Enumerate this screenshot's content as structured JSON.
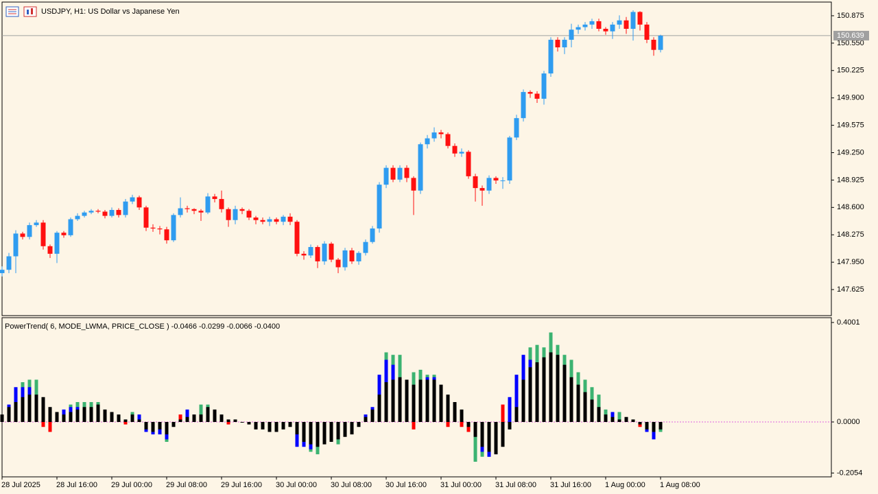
{
  "chart_data": [
    {
      "type": "candlestick",
      "title": "USDJPY, H1:  US Dollar vs Japanese Yen",
      "categories": [
        "28 Jul 2025",
        null,
        null,
        null,
        null,
        null,
        null,
        null,
        "28 Jul 16:00",
        null,
        null,
        null,
        null,
        null,
        null,
        null,
        "29 Jul 00:00",
        null,
        null,
        null,
        null,
        null,
        null,
        null,
        "29 Jul 08:00",
        null,
        null,
        null,
        null,
        null,
        null,
        null,
        "29 Jul 16:00",
        null,
        null,
        null,
        null,
        null,
        null,
        null,
        "30 Jul 00:00",
        null,
        null,
        null,
        null,
        null,
        null,
        null,
        "30 Jul 08:00",
        null,
        null,
        null,
        null,
        null,
        null,
        null,
        "30 Jul 16:00",
        null,
        null,
        null,
        null,
        null,
        null,
        null,
        "31 Jul 00:00",
        null,
        null,
        null,
        null,
        null,
        null,
        null,
        "31 Jul 08:00",
        null,
        null,
        null,
        null,
        null,
        null,
        null,
        "31 Jul 16:00",
        null,
        null,
        null,
        null,
        null,
        null,
        null,
        "1 Aug 00:00",
        null,
        null,
        null,
        null,
        null,
        null,
        null,
        "1 Aug 08:00"
      ],
      "open": [
        147.82,
        147.86,
        148.02,
        148.29,
        148.25,
        148.39,
        148.42,
        148.14,
        148.05,
        148.3,
        148.27,
        148.46,
        148.5,
        148.54,
        148.56,
        148.55,
        148.5,
        148.57,
        148.51,
        148.67,
        148.72,
        148.6,
        148.36,
        148.35,
        148.34,
        148.21,
        148.51,
        148.59,
        148.58,
        148.56,
        148.54,
        148.73,
        148.7,
        148.58,
        148.45,
        148.58,
        148.56,
        148.48,
        148.45,
        148.43,
        148.46,
        148.43,
        148.49,
        148.43,
        148.05,
        148.03,
        148.13,
        147.96,
        148.17,
        147.98,
        147.89,
        148.09,
        147.96,
        148.06,
        148.19,
        148.35,
        148.87,
        149.07,
        148.93,
        149.07,
        148.95,
        148.8,
        149.35,
        149.42,
        149.49,
        149.47,
        149.33,
        149.24,
        149.26,
        148.97,
        148.83,
        148.8,
        148.95,
        148.92,
        148.92,
        149.43,
        149.66,
        149.97,
        149.95,
        149.89,
        150.19,
        150.59,
        150.5,
        150.59,
        150.71,
        150.74,
        150.77,
        150.81,
        150.72,
        150.69,
        150.77,
        150.82,
        150.72,
        150.92,
        150.77,
        150.59,
        150.47
      ],
      "high": [
        147.9,
        148.06,
        148.33,
        148.31,
        148.42,
        148.45,
        148.45,
        148.16,
        148.32,
        148.32,
        148.48,
        148.53,
        148.56,
        148.58,
        148.58,
        148.57,
        148.6,
        148.59,
        148.7,
        148.75,
        148.74,
        148.62,
        148.4,
        148.38,
        148.37,
        148.53,
        148.72,
        148.62,
        148.59,
        148.58,
        148.77,
        148.76,
        148.8,
        148.6,
        148.62,
        148.6,
        148.58,
        148.5,
        148.48,
        148.49,
        148.48,
        148.51,
        148.53,
        148.45,
        148.08,
        148.16,
        148.15,
        148.2,
        148.19,
        148.0,
        148.12,
        148.12,
        148.08,
        148.22,
        148.38,
        148.9,
        149.1,
        149.1,
        149.1,
        149.1,
        148.97,
        149.37,
        149.46,
        149.55,
        149.52,
        149.49,
        149.36,
        149.3,
        149.28,
        149.0,
        148.86,
        148.98,
        148.97,
        148.96,
        149.45,
        149.7,
        150.0,
        149.99,
        149.98,
        150.22,
        150.62,
        150.62,
        150.62,
        150.78,
        150.77,
        150.8,
        150.84,
        150.84,
        150.74,
        150.8,
        150.88,
        150.86,
        150.94,
        150.93,
        150.8,
        150.62,
        150.65
      ],
      "low": [
        147.78,
        147.82,
        147.82,
        148.22,
        148.22,
        148.37,
        148.1,
        148.0,
        147.94,
        148.24,
        148.25,
        148.44,
        148.48,
        148.52,
        148.53,
        148.47,
        148.48,
        148.48,
        148.48,
        148.64,
        148.57,
        148.32,
        148.31,
        148.28,
        148.17,
        148.19,
        148.48,
        148.54,
        148.52,
        148.44,
        148.52,
        148.66,
        148.54,
        148.37,
        148.4,
        148.52,
        148.45,
        148.4,
        148.4,
        148.38,
        148.4,
        148.39,
        148.39,
        148.02,
        147.98,
        148.0,
        147.88,
        147.92,
        147.95,
        147.82,
        147.85,
        147.93,
        147.92,
        148.03,
        148.17,
        148.3,
        148.83,
        148.9,
        148.9,
        148.9,
        148.51,
        148.76,
        149.3,
        149.38,
        149.42,
        149.3,
        149.2,
        149.2,
        148.94,
        148.67,
        148.62,
        148.76,
        148.88,
        148.82,
        148.88,
        149.4,
        149.62,
        149.9,
        149.84,
        149.82,
        150.15,
        150.45,
        150.42,
        150.5,
        150.66,
        150.7,
        150.72,
        150.69,
        150.65,
        150.6,
        150.72,
        150.66,
        150.58,
        150.7,
        150.55,
        150.4,
        150.44
      ],
      "close": [
        147.86,
        148.02,
        148.29,
        148.25,
        148.39,
        148.42,
        148.14,
        148.05,
        148.3,
        148.27,
        148.46,
        148.5,
        148.54,
        148.56,
        148.55,
        148.5,
        148.57,
        148.51,
        148.67,
        148.72,
        148.6,
        148.36,
        148.35,
        148.34,
        148.21,
        148.51,
        148.59,
        148.58,
        148.56,
        148.54,
        148.73,
        148.7,
        148.58,
        148.45,
        148.58,
        148.56,
        148.48,
        148.45,
        148.43,
        148.46,
        148.43,
        148.49,
        148.43,
        148.05,
        148.03,
        148.13,
        147.96,
        148.17,
        147.98,
        147.89,
        148.09,
        147.96,
        148.06,
        148.19,
        148.35,
        148.87,
        149.07,
        148.93,
        149.07,
        148.95,
        148.8,
        149.35,
        149.42,
        149.49,
        149.47,
        149.33,
        149.24,
        149.26,
        148.97,
        148.83,
        148.8,
        148.95,
        148.92,
        148.92,
        149.43,
        149.66,
        149.97,
        149.95,
        149.89,
        150.19,
        150.59,
        150.5,
        150.59,
        150.71,
        150.74,
        150.77,
        150.81,
        150.72,
        150.69,
        150.77,
        150.82,
        150.72,
        150.92,
        150.77,
        150.59,
        150.47,
        150.639
      ],
      "up_color": "#2f9cf0",
      "down_color": "#ff1010",
      "last_price": 150.639,
      "ylim": [
        147.316,
        151.0375
      ],
      "yticks": [
        150.875,
        {
          "value": 150.55,
          "label": "150.550"
        },
        150.225,
        {
          "value": 149.9,
          "label": "149.900"
        },
        149.575,
        {
          "value": 149.25,
          "label": "149.250"
        },
        148.925,
        {
          "value": 148.6,
          "label": "148.600"
        },
        148.275,
        {
          "value": 147.95,
          "label": "147.950"
        },
        147.625
      ]
    },
    {
      "type": "bar",
      "title": "PowerTrend( 6, MODE_LWMA, PRICE_CLOSE ) -0.0466 -0.0299 -0.0066 -0.0400",
      "barmode": "overlay",
      "series": [
        {
          "color": "#3cb371",
          "values": [
            null,
            null,
            null,
            0.16,
            0.17,
            0.17,
            null,
            null,
            null,
            null,
            0.07,
            0.08,
            0.08,
            0.08,
            0.08,
            null,
            null,
            null,
            null,
            0.04,
            null,
            null,
            null,
            null,
            -0.08,
            null,
            null,
            null,
            null,
            0.07,
            0.07,
            null,
            null,
            null,
            null,
            null,
            null,
            null,
            null,
            null,
            null,
            null,
            null,
            null,
            null,
            -0.12,
            -0.13,
            null,
            null,
            -0.09,
            null,
            null,
            null,
            null,
            null,
            null,
            0.28,
            0.27,
            0.27,
            null,
            0.2,
            0.21,
            0.19,
            0.19,
            null,
            null,
            null,
            null,
            null,
            -0.16,
            -0.14,
            -0.14,
            null,
            null,
            null,
            null,
            null,
            0.3,
            0.31,
            0.3,
            0.36,
            0.31,
            0.27,
            0.25,
            0.2,
            0.17,
            0.14,
            0.11,
            0.05,
            null,
            0.04,
            null,
            null,
            null,
            null,
            null,
            -0.04
          ]
        },
        {
          "color": "#0000ff",
          "values": [
            null,
            0.07,
            0.14,
            0.14,
            0.14,
            null,
            null,
            null,
            null,
            0.05,
            0.06,
            0.06,
            null,
            null,
            null,
            null,
            null,
            null,
            null,
            null,
            0.03,
            -0.04,
            -0.05,
            -0.05,
            -0.07,
            null,
            null,
            0.05,
            null,
            null,
            null,
            null,
            null,
            null,
            null,
            null,
            null,
            null,
            null,
            null,
            null,
            null,
            null,
            -0.1,
            -0.1,
            -0.11,
            null,
            null,
            null,
            null,
            null,
            null,
            null,
            0.03,
            0.06,
            0.19,
            0.25,
            0.23,
            null,
            null,
            null,
            null,
            0.18,
            0.18,
            null,
            null,
            null,
            null,
            null,
            null,
            -0.12,
            -0.14,
            -0.13,
            null,
            0.1,
            0.19,
            0.27,
            0.25,
            null,
            null,
            null,
            null,
            null,
            null,
            null,
            null,
            null,
            null,
            null,
            0.04,
            null,
            null,
            null,
            null,
            -0.04,
            -0.07,
            null
          ]
        },
        {
          "color": "#ff0000",
          "values": [
            null,
            null,
            null,
            null,
            null,
            null,
            -0.02,
            -0.04,
            null,
            null,
            null,
            null,
            null,
            null,
            null,
            null,
            null,
            null,
            -0.01,
            null,
            null,
            null,
            null,
            null,
            null,
            null,
            0.03,
            null,
            null,
            null,
            null,
            null,
            null,
            -0.01,
            null,
            null,
            null,
            null,
            null,
            null,
            null,
            null,
            null,
            null,
            null,
            null,
            null,
            null,
            null,
            null,
            null,
            null,
            null,
            null,
            null,
            null,
            null,
            null,
            null,
            null,
            -0.03,
            null,
            null,
            null,
            null,
            -0.02,
            null,
            -0.02,
            -0.04,
            null,
            null,
            null,
            null,
            0.07,
            null,
            null,
            null,
            null,
            null,
            null,
            null,
            null,
            null,
            null,
            null,
            null,
            null,
            null,
            null,
            null,
            null,
            null,
            null,
            -0.02,
            null,
            null,
            null
          ]
        },
        {
          "color": "#000000",
          "values": [
            0.03,
            0.06,
            0.08,
            0.1,
            0.11,
            0.11,
            0.1,
            0.06,
            0.04,
            0.03,
            0.04,
            0.05,
            0.06,
            0.06,
            0.07,
            0.05,
            0.04,
            0.03,
            0.01,
            0.03,
            0.01,
            -0.03,
            -0.04,
            -0.03,
            -0.05,
            -0.02,
            0.01,
            0.02,
            0.03,
            0.03,
            0.06,
            0.05,
            0.03,
            0.01,
            0.01,
            -0.002,
            -0.01,
            -0.03,
            -0.03,
            -0.04,
            -0.04,
            -0.03,
            -0.02,
            -0.05,
            -0.08,
            -0.09,
            -0.1,
            -0.09,
            -0.08,
            -0.07,
            -0.06,
            -0.05,
            -0.02,
            0.02,
            0.05,
            0.11,
            0.16,
            0.17,
            0.18,
            0.17,
            0.15,
            0.17,
            0.17,
            0.17,
            0.15,
            0.11,
            0.08,
            0.05,
            -0.02,
            -0.06,
            -0.1,
            -0.12,
            -0.13,
            -0.1,
            -0.03,
            0.06,
            0.17,
            0.22,
            0.24,
            0.26,
            0.28,
            0.27,
            0.23,
            0.18,
            0.15,
            0.12,
            0.09,
            0.06,
            0.03,
            0.02,
            0.01,
            0.02,
            0.01,
            -0.01,
            -0.03,
            -0.04,
            -0.03
          ]
        }
      ],
      "ylim": [
        -0.2208,
        0.4195
      ],
      "yticks": [
        0.4001,
        {
          "value": 0,
          "label": "0.0000"
        },
        -0.2054
      ]
    }
  ]
}
